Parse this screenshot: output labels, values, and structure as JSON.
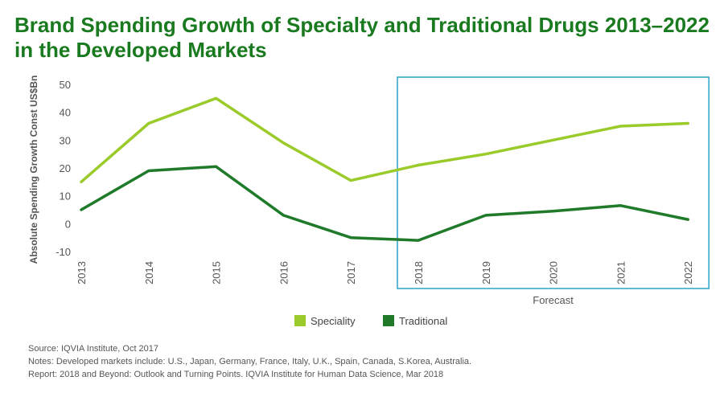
{
  "title": "Brand Spending Growth of Specialty and Traditional Drugs 2013–2022 in the Developed Markets",
  "chart_data": {
    "type": "line",
    "x": [
      "2013",
      "2014",
      "2015",
      "2016",
      "2017",
      "2018",
      "2019",
      "2020",
      "2021",
      "2022"
    ],
    "series": [
      {
        "name": "Speciality",
        "color": "#9acb2a",
        "values": [
          15,
          36,
          45,
          29,
          15.5,
          21,
          25,
          30,
          35,
          36
        ]
      },
      {
        "name": "Traditional",
        "color": "#1f7a2a",
        "values": [
          5,
          19,
          20.5,
          3,
          -5,
          -6,
          3,
          4.5,
          6.5,
          1.5
        ]
      }
    ],
    "ylabel": "Absolute Spending Growth Const US$Bn",
    "ylim": [
      -10,
      50
    ],
    "yticks": [
      50,
      40,
      30,
      20,
      10,
      0,
      -10
    ],
    "forecast": {
      "label": "Forecast",
      "from": "2018",
      "to": "2022",
      "color": "#29a3c9"
    },
    "legend_position": "bottom"
  },
  "notes": [
    "Source: IQVIA Institute, Oct 2017",
    "Notes: Developed markets include: U.S., Japan, Germany, France, Italy, U.K., Spain, Canada, S.Korea, Australia.",
    "Report: 2018 and Beyond: Outlook and Turning Points. IQVIA Institute for Human Data Science, Mar 2018"
  ]
}
